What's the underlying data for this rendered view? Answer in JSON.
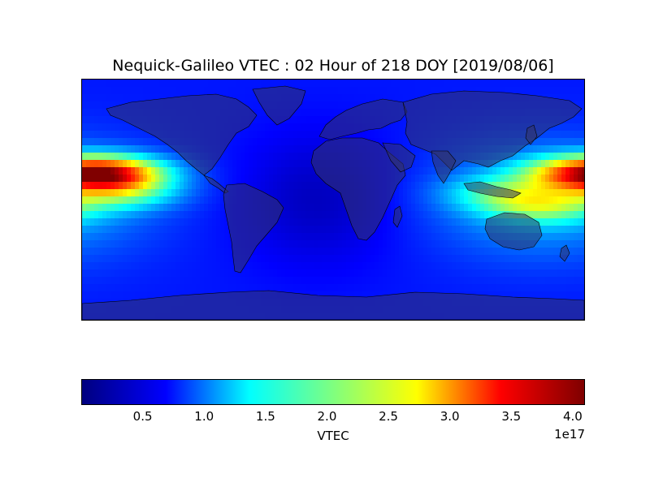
{
  "title": "Nequick-Galileo VTEC : 02 Hour of 218 DOY [2019/08/06]",
  "colorbar": {
    "label": "VTEC",
    "exponent": "1e17",
    "min": 0.0,
    "max": 4.1,
    "ticks": [
      {
        "value": 0.5,
        "label": "0.5"
      },
      {
        "value": 1.0,
        "label": "1.0"
      },
      {
        "value": 1.5,
        "label": "1.5"
      },
      {
        "value": 2.0,
        "label": "2.0"
      },
      {
        "value": 2.5,
        "label": "2.5"
      },
      {
        "value": 3.0,
        "label": "3.0"
      },
      {
        "value": 3.5,
        "label": "3.5"
      },
      {
        "value": 4.0,
        "label": "4.0"
      }
    ],
    "colormap": "jet",
    "colors": [
      "#00007f",
      "#0000ff",
      "#00ffff",
      "#7fff7f",
      "#ffff00",
      "#ff0000",
      "#7f0000"
    ]
  },
  "map": {
    "projection": "equirectangular",
    "lon_range": [
      -180,
      180
    ],
    "lat_range": [
      -90,
      90
    ],
    "land_overlay_color": "#333366",
    "coastline_color": "#000000",
    "background_value": 0.6,
    "vtec_peaks": [
      {
        "lon": -155,
        "lat": 20,
        "value": 4.1
      },
      {
        "lon": 175,
        "lat": 20,
        "value": 3.6
      },
      {
        "lon": -150,
        "lat": 5,
        "value": 2.3
      },
      {
        "lon": 150,
        "lat": -5,
        "value": 2.3
      },
      {
        "lon": 120,
        "lat": 5,
        "value": 1.9
      }
    ]
  }
}
